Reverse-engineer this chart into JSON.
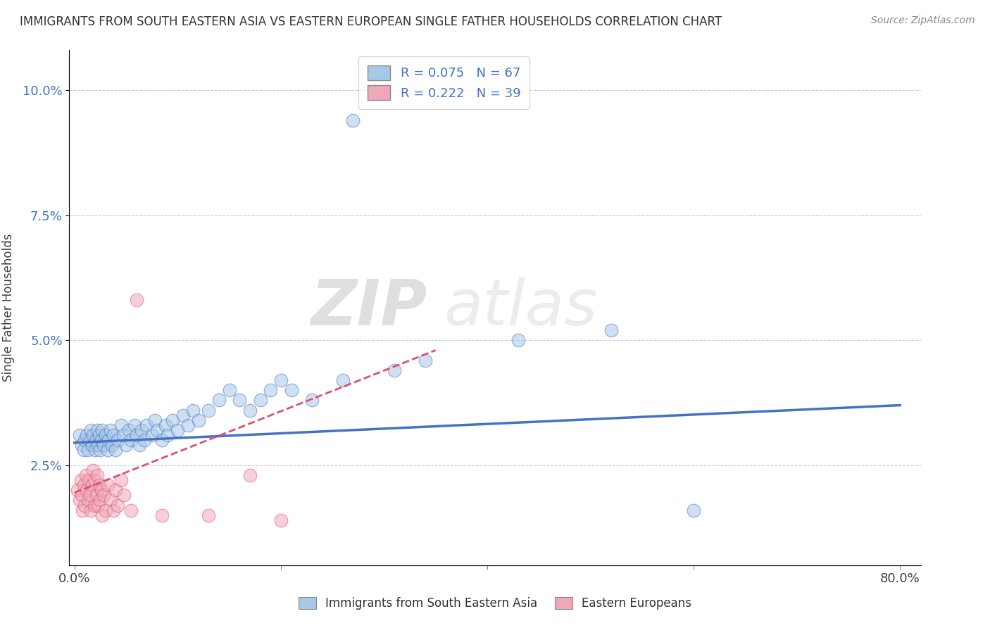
{
  "title": "IMMIGRANTS FROM SOUTH EASTERN ASIA VS EASTERN EUROPEAN SINGLE FATHER HOUSEHOLDS CORRELATION CHART",
  "source": "Source: ZipAtlas.com",
  "ylabel": "Single Father Households",
  "y_ticks": [
    0.025,
    0.05,
    0.075,
    0.1
  ],
  "y_tick_labels": [
    "2.5%",
    "5.0%",
    "7.5%",
    "10.0%"
  ],
  "x_ticks": [
    0.0,
    0.2,
    0.4,
    0.6,
    0.8
  ],
  "x_tick_labels": [
    "0.0%",
    "",
    "",
    "",
    "80.0%"
  ],
  "xlim": [
    -0.005,
    0.82
  ],
  "ylim": [
    0.005,
    0.108
  ],
  "legend_R1": "R = 0.075",
  "legend_N1": "N = 67",
  "legend_R2": "R = 0.222",
  "legend_N2": "N = 39",
  "legend_label1": "Immigrants from South Eastern Asia",
  "legend_label2": "Eastern Europeans",
  "color_blue": "#a8c8e8",
  "color_pink": "#f0a8b8",
  "color_blue_line": "#4472c4",
  "color_pink_line": "#e05070",
  "color_title": "#303030",
  "color_legend_text": "#4472c4",
  "watermark_zip": "ZIP",
  "watermark_atlas": "atlas",
  "blue_points": [
    [
      0.005,
      0.031
    ],
    [
      0.007,
      0.029
    ],
    [
      0.009,
      0.028
    ],
    [
      0.01,
      0.03
    ],
    [
      0.012,
      0.031
    ],
    [
      0.013,
      0.028
    ],
    [
      0.015,
      0.03
    ],
    [
      0.016,
      0.032
    ],
    [
      0.017,
      0.029
    ],
    [
      0.018,
      0.031
    ],
    [
      0.02,
      0.028
    ],
    [
      0.021,
      0.03
    ],
    [
      0.022,
      0.032
    ],
    [
      0.023,
      0.029
    ],
    [
      0.024,
      0.031
    ],
    [
      0.025,
      0.028
    ],
    [
      0.026,
      0.03
    ],
    [
      0.027,
      0.032
    ],
    [
      0.028,
      0.029
    ],
    [
      0.03,
      0.031
    ],
    [
      0.032,
      0.028
    ],
    [
      0.033,
      0.03
    ],
    [
      0.035,
      0.032
    ],
    [
      0.036,
      0.029
    ],
    [
      0.038,
      0.031
    ],
    [
      0.04,
      0.028
    ],
    [
      0.042,
      0.03
    ],
    [
      0.045,
      0.033
    ],
    [
      0.047,
      0.031
    ],
    [
      0.05,
      0.029
    ],
    [
      0.053,
      0.032
    ],
    [
      0.055,
      0.03
    ],
    [
      0.058,
      0.033
    ],
    [
      0.06,
      0.031
    ],
    [
      0.063,
      0.029
    ],
    [
      0.065,
      0.032
    ],
    [
      0.068,
      0.03
    ],
    [
      0.07,
      0.033
    ],
    [
      0.075,
      0.031
    ],
    [
      0.078,
      0.034
    ],
    [
      0.08,
      0.032
    ],
    [
      0.085,
      0.03
    ],
    [
      0.088,
      0.033
    ],
    [
      0.09,
      0.031
    ],
    [
      0.095,
      0.034
    ],
    [
      0.1,
      0.032
    ],
    [
      0.105,
      0.035
    ],
    [
      0.11,
      0.033
    ],
    [
      0.115,
      0.036
    ],
    [
      0.12,
      0.034
    ],
    [
      0.13,
      0.036
    ],
    [
      0.14,
      0.038
    ],
    [
      0.15,
      0.04
    ],
    [
      0.16,
      0.038
    ],
    [
      0.17,
      0.036
    ],
    [
      0.18,
      0.038
    ],
    [
      0.19,
      0.04
    ],
    [
      0.2,
      0.042
    ],
    [
      0.21,
      0.04
    ],
    [
      0.23,
      0.038
    ],
    [
      0.26,
      0.042
    ],
    [
      0.31,
      0.044
    ],
    [
      0.34,
      0.046
    ],
    [
      0.43,
      0.05
    ],
    [
      0.52,
      0.052
    ],
    [
      0.27,
      0.094
    ],
    [
      0.6,
      0.016
    ]
  ],
  "pink_points": [
    [
      0.003,
      0.02
    ],
    [
      0.005,
      0.018
    ],
    [
      0.006,
      0.022
    ],
    [
      0.007,
      0.019
    ],
    [
      0.008,
      0.016
    ],
    [
      0.009,
      0.021
    ],
    [
      0.01,
      0.017
    ],
    [
      0.011,
      0.023
    ],
    [
      0.012,
      0.02
    ],
    [
      0.013,
      0.018
    ],
    [
      0.014,
      0.022
    ],
    [
      0.015,
      0.019
    ],
    [
      0.016,
      0.016
    ],
    [
      0.017,
      0.021
    ],
    [
      0.018,
      0.024
    ],
    [
      0.019,
      0.017
    ],
    [
      0.02,
      0.022
    ],
    [
      0.021,
      0.019
    ],
    [
      0.022,
      0.023
    ],
    [
      0.023,
      0.017
    ],
    [
      0.024,
      0.021
    ],
    [
      0.025,
      0.018
    ],
    [
      0.026,
      0.02
    ],
    [
      0.027,
      0.015
    ],
    [
      0.028,
      0.019
    ],
    [
      0.03,
      0.016
    ],
    [
      0.032,
      0.021
    ],
    [
      0.035,
      0.018
    ],
    [
      0.038,
      0.016
    ],
    [
      0.04,
      0.02
    ],
    [
      0.042,
      0.017
    ],
    [
      0.045,
      0.022
    ],
    [
      0.048,
      0.019
    ],
    [
      0.055,
      0.016
    ],
    [
      0.06,
      0.058
    ],
    [
      0.085,
      0.015
    ],
    [
      0.13,
      0.015
    ],
    [
      0.17,
      0.023
    ],
    [
      0.2,
      0.014
    ]
  ]
}
